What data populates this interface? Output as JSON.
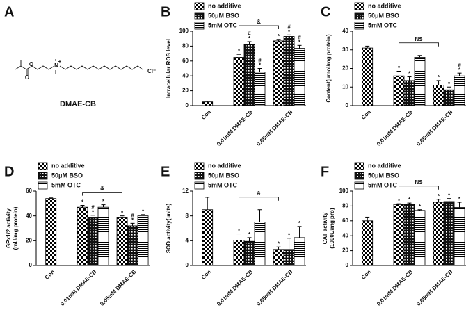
{
  "panel_a": {
    "letter": "A",
    "atoms": [
      "O",
      "O",
      "N",
      "+",
      "Cl⁻"
    ],
    "name": "DMAE-CB"
  },
  "chart_data": [
    {
      "type": "bar",
      "letter": "B",
      "ylabel": [
        "Intracellular ROS level"
      ],
      "categories": [
        "Con",
        "0.01mM DMAE-CB",
        "0.05mM DMAE-CB"
      ],
      "ylim": [
        0,
        100
      ],
      "yticks": [
        0,
        20,
        40,
        60,
        80,
        100
      ],
      "bracket": "&",
      "series": [
        {
          "name": "no additive",
          "pattern": "checker",
          "values": [
            5,
            65,
            87
          ],
          "errors": [
            1,
            4,
            2
          ],
          "sig": [
            null,
            "*",
            "*"
          ],
          "sig2": [
            null,
            null,
            null
          ]
        },
        {
          "name": "50μM BSO",
          "pattern": "dots",
          "values": [
            null,
            82,
            93
          ],
          "errors": [
            null,
            4,
            2
          ],
          "sig": [
            null,
            "*",
            "*"
          ],
          "sig2": [
            null,
            "#",
            "#"
          ]
        },
        {
          "name": "5mM OTC",
          "pattern": "hlines",
          "values": [
            null,
            45,
            77
          ],
          "errors": [
            null,
            5,
            4
          ],
          "sig": [
            null,
            "*",
            "*"
          ],
          "sig2": [
            null,
            "#",
            "#"
          ]
        }
      ]
    },
    {
      "type": "bar",
      "letter": "C",
      "ylabel": [
        "Content(μmol/mg protein)"
      ],
      "categories": [
        "Con",
        "0.01mM DMAE-CB",
        "0.05mM DMAE-CB"
      ],
      "ylim": [
        0,
        40
      ],
      "yticks": [
        0,
        10,
        20,
        30,
        40
      ],
      "bracket": "NS",
      "series": [
        {
          "name": "no additive",
          "pattern": "checker",
          "values": [
            31,
            16,
            11
          ],
          "errors": [
            1,
            2.5,
            2.5
          ],
          "sig": [
            null,
            "*",
            "*"
          ],
          "sig2": [
            null,
            null,
            null
          ]
        },
        {
          "name": "50μM BSO",
          "pattern": "dots",
          "values": [
            null,
            13.5,
            8.5
          ],
          "errors": [
            null,
            2,
            1.5
          ],
          "sig": [
            null,
            "*",
            "*"
          ],
          "sig2": [
            null,
            null,
            null
          ]
        },
        {
          "name": "5mM OTC",
          "pattern": "hlines",
          "values": [
            null,
            26,
            16
          ],
          "errors": [
            null,
            1,
            1.5
          ],
          "sig": [
            null,
            null,
            "*"
          ],
          "sig2": [
            null,
            null,
            "#"
          ]
        }
      ]
    },
    {
      "type": "bar",
      "letter": "D",
      "ylabel": [
        "GPx1/2 activity",
        "(mU/mg protein)"
      ],
      "categories": [
        "Con",
        "0.01mM DMAE-CB",
        "0.05mM DMAE-CB"
      ],
      "ylim": [
        0,
        60
      ],
      "yticks": [
        0,
        20,
        40,
        60
      ],
      "bracket": "&",
      "series": [
        {
          "name": "no additive",
          "pattern": "checker",
          "values": [
            54,
            47,
            39
          ],
          "errors": [
            0.5,
            1.5,
            1
          ],
          "sig": [
            null,
            "*",
            "*"
          ],
          "sig2": [
            null,
            null,
            null
          ]
        },
        {
          "name": "50μM BSO",
          "pattern": "dots",
          "values": [
            null,
            39,
            32
          ],
          "errors": [
            null,
            1.5,
            2
          ],
          "sig": [
            null,
            "*",
            "*"
          ],
          "sig2": [
            null,
            "#",
            "#"
          ]
        },
        {
          "name": "5mM OTC",
          "pattern": "hlines",
          "values": [
            null,
            47,
            40
          ],
          "errors": [
            null,
            2,
            1
          ],
          "sig": [
            null,
            "*",
            "*"
          ],
          "sig2": [
            null,
            null,
            null
          ]
        }
      ]
    },
    {
      "type": "bar",
      "letter": "E",
      "ylabel": [
        "SOD activity(units)"
      ],
      "categories": [
        "Con",
        "0.01mM DMAE-CB",
        "0.05mM DMAE-CB"
      ],
      "ylim": [
        0,
        12
      ],
      "yticks": [
        0,
        4,
        8,
        12
      ],
      "bracket": "&",
      "series": [
        {
          "name": "no additive",
          "pattern": "checker",
          "values": [
            9,
            4.1,
            2.6
          ],
          "errors": [
            2,
            1,
            0.4
          ],
          "sig": [
            null,
            "*",
            "*"
          ],
          "sig2": [
            null,
            null,
            null
          ]
        },
        {
          "name": "50μM BSO",
          "pattern": "dots",
          "values": [
            null,
            3.9,
            2.6
          ],
          "errors": [
            null,
            0.6,
            1.8
          ],
          "sig": [
            null,
            "*",
            "*"
          ],
          "sig2": [
            null,
            null,
            null
          ]
        },
        {
          "name": "5mM OTC",
          "pattern": "hlines",
          "values": [
            null,
            7,
            4.5
          ],
          "errors": [
            null,
            2,
            1.8
          ],
          "sig": [
            null,
            null,
            "*"
          ],
          "sig2": [
            null,
            null,
            null
          ]
        }
      ]
    },
    {
      "type": "bar",
      "letter": "F",
      "ylabel": [
        "CAT activity",
        "(1000U/mg pro)"
      ],
      "categories": [
        "Con",
        "0.01mM DMAE-CB",
        "0.05mM DMAE-CB"
      ],
      "ylim": [
        0,
        100
      ],
      "yticks": [
        0,
        20,
        40,
        60,
        80,
        100
      ],
      "bracket": "NS",
      "series": [
        {
          "name": "no additive",
          "pattern": "checker",
          "values": [
            60,
            82,
            85
          ],
          "errors": [
            5,
            1,
            4
          ],
          "sig": [
            null,
            "*",
            "*"
          ],
          "sig2": [
            null,
            null,
            null
          ]
        },
        {
          "name": "50μM BSO",
          "pattern": "dots",
          "values": [
            null,
            82,
            86
          ],
          "errors": [
            null,
            2,
            4
          ],
          "sig": [
            null,
            "*",
            "*"
          ],
          "sig2": [
            null,
            null,
            null
          ]
        },
        {
          "name": "5mM OTC",
          "pattern": "hlines",
          "values": [
            null,
            74,
            78
          ],
          "errors": [
            null,
            1,
            7
          ],
          "sig": [
            null,
            "*",
            "*"
          ],
          "sig2": [
            null,
            null,
            null
          ]
        }
      ]
    }
  ]
}
